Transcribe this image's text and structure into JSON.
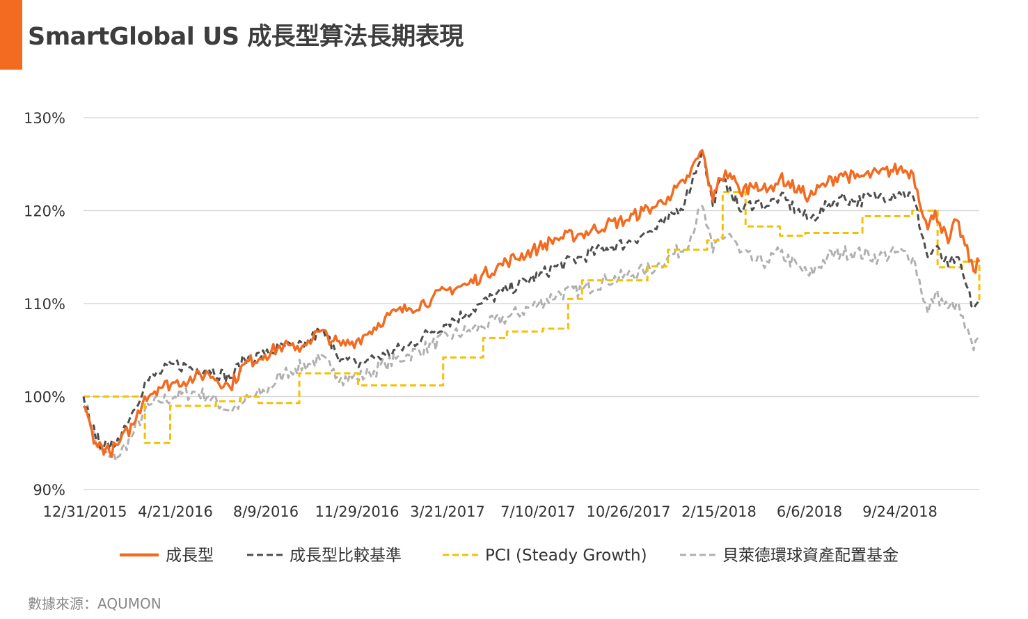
{
  "header": {
    "title": "SmartGlobal US 成長型算法長期表現"
  },
  "footer": {
    "source": "數據來源：AQUMON"
  },
  "colors": {
    "accent": "#f26b21",
    "growth": "#f26b21",
    "benchmark": "#4d4d4d",
    "pci": "#f5c000",
    "blackrock": "#b0b0b0",
    "grid": "#d8d8d8"
  },
  "chart_data": {
    "type": "line",
    "title": "SmartGlobal US 成長型算法長期表現",
    "xlabel": "",
    "ylabel": "",
    "ylim": [
      90,
      130
    ],
    "yticks": [
      90,
      100,
      110,
      120,
      130
    ],
    "ytick_labels": [
      "90%",
      "100%",
      "110%",
      "120%",
      "130%"
    ],
    "xlim": [
      "2015-12-31",
      "2018-12-31"
    ],
    "xtick_labels": [
      "12/31/2015",
      "4/21/2016",
      "8/9/2016",
      "11/29/2016",
      "3/21/2017",
      "7/10/2017",
      "10/26/2017",
      "2/15/2018",
      "6/6/2018",
      "9/24/2018"
    ],
    "grid": true,
    "legend_position": "bottom",
    "series": [
      {
        "name": "成長型",
        "style": "solid",
        "x": [
          "2015-12-31",
          "2016-01-15",
          "2016-02-01",
          "2016-02-11",
          "2016-03-01",
          "2016-03-15",
          "2016-04-01",
          "2016-04-21",
          "2016-05-15",
          "2016-06-01",
          "2016-06-27",
          "2016-07-15",
          "2016-08-09",
          "2016-09-01",
          "2016-09-15",
          "2016-10-01",
          "2016-10-15",
          "2016-11-01",
          "2016-11-10",
          "2016-11-29",
          "2016-12-15",
          "2017-01-03",
          "2017-02-01",
          "2017-03-01",
          "2017-03-21",
          "2017-04-13",
          "2017-05-01",
          "2017-06-01",
          "2017-07-10",
          "2017-08-01",
          "2017-09-01",
          "2017-10-01",
          "2017-10-26",
          "2017-11-15",
          "2017-12-01",
          "2017-12-15",
          "2018-01-05",
          "2018-01-26",
          "2018-02-08",
          "2018-02-15",
          "2018-03-01",
          "2018-03-13",
          "2018-04-02",
          "2018-04-15",
          "2018-05-01",
          "2018-06-06",
          "2018-06-28",
          "2018-07-15",
          "2018-08-01",
          "2018-08-30",
          "2018-09-24",
          "2018-10-11",
          "2018-10-29",
          "2018-11-07",
          "2018-11-23",
          "2018-12-03",
          "2018-12-24",
          "2018-12-31"
        ],
        "values": [
          99.0,
          95.0,
          94.0,
          94.8,
          97.0,
          100.0,
          101.0,
          101.5,
          102.0,
          102.5,
          101.0,
          103.5,
          104.5,
          105.5,
          105.0,
          106.0,
          107.0,
          106.0,
          105.5,
          106.0,
          107.0,
          108.5,
          109.5,
          110.5,
          111.5,
          112.0,
          113.0,
          114.5,
          116.0,
          117.0,
          117.5,
          118.5,
          119.0,
          120.0,
          120.5,
          121.5,
          123.0,
          126.5,
          121.0,
          123.5,
          124.0,
          122.0,
          123.0,
          122.0,
          123.5,
          121.5,
          123.0,
          124.0,
          123.5,
          124.0,
          124.5,
          124.0,
          118.0,
          120.0,
          116.5,
          119.0,
          113.5,
          114.5
        ]
      },
      {
        "name": "成長型比較基準",
        "style": "dashed",
        "x": [
          "2015-12-31",
          "2016-01-15",
          "2016-02-01",
          "2016-02-11",
          "2016-03-01",
          "2016-03-15",
          "2016-04-01",
          "2016-04-21",
          "2016-05-15",
          "2016-06-01",
          "2016-06-27",
          "2016-07-15",
          "2016-08-09",
          "2016-09-01",
          "2016-09-15",
          "2016-10-01",
          "2016-10-15",
          "2016-11-01",
          "2016-11-10",
          "2016-11-29",
          "2016-12-15",
          "2017-01-03",
          "2017-02-01",
          "2017-03-01",
          "2017-03-21",
          "2017-04-13",
          "2017-05-01",
          "2017-06-01",
          "2017-07-10",
          "2017-08-01",
          "2017-09-01",
          "2017-10-01",
          "2017-10-26",
          "2017-11-15",
          "2017-12-01",
          "2017-12-15",
          "2018-01-05",
          "2018-01-26",
          "2018-02-08",
          "2018-02-15",
          "2018-03-01",
          "2018-03-13",
          "2018-04-02",
          "2018-04-15",
          "2018-05-01",
          "2018-06-06",
          "2018-06-28",
          "2018-07-15",
          "2018-08-01",
          "2018-08-30",
          "2018-09-24",
          "2018-10-11",
          "2018-10-29",
          "2018-11-07",
          "2018-11-23",
          "2018-12-03",
          "2018-12-24",
          "2018-12-31"
        ],
        "values": [
          100.0,
          95.5,
          94.3,
          95.5,
          98.5,
          101.5,
          102.5,
          103.5,
          103.0,
          103.0,
          102.0,
          104.0,
          104.5,
          105.5,
          105.0,
          106.0,
          107.0,
          105.5,
          104.0,
          103.5,
          104.0,
          104.5,
          105.5,
          107.0,
          108.0,
          109.0,
          110.0,
          111.5,
          113.0,
          114.0,
          115.0,
          116.0,
          116.5,
          117.5,
          118.0,
          119.0,
          121.0,
          126.5,
          120.5,
          123.0,
          122.5,
          120.0,
          121.0,
          120.5,
          121.5,
          119.0,
          120.5,
          121.5,
          121.0,
          121.5,
          122.0,
          121.5,
          115.0,
          116.0,
          114.0,
          115.0,
          109.5,
          110.5
        ]
      },
      {
        "name": "PCI (Steady Growth)",
        "style": "dashed-step",
        "x": [
          "2015-12-31",
          "2016-02-24",
          "2016-03-15",
          "2016-04-15",
          "2016-06-10",
          "2016-07-10",
          "2016-08-01",
          "2016-09-20",
          "2016-11-10",
          "2016-12-01",
          "2017-01-20",
          "2017-03-01",
          "2017-03-15",
          "2017-05-03",
          "2017-06-01",
          "2017-07-15",
          "2017-08-15",
          "2017-09-01",
          "2017-10-01",
          "2017-11-20",
          "2017-12-15",
          "2018-02-01",
          "2018-02-20",
          "2018-03-20",
          "2018-04-15",
          "2018-05-01",
          "2018-06-01",
          "2018-07-12",
          "2018-08-10",
          "2018-10-10",
          "2018-10-20",
          "2018-11-10",
          "2018-12-10",
          "2018-12-31"
        ],
        "values": [
          100.0,
          100.0,
          95.0,
          99.0,
          99.5,
          100.0,
          99.3,
          102.5,
          102.5,
          101.2,
          101.2,
          101.2,
          104.2,
          106.3,
          107.0,
          107.3,
          110.5,
          112.5,
          112.5,
          114.0,
          115.8,
          116.8,
          122.0,
          118.3,
          118.3,
          117.3,
          117.6,
          117.6,
          119.4,
          120.0,
          120.0,
          113.9,
          114.5,
          110.0
        ]
      },
      {
        "name": "貝萊德環球資產配置基金",
        "style": "dashed",
        "x": [
          "2015-12-31",
          "2016-01-15",
          "2016-02-01",
          "2016-02-11",
          "2016-03-01",
          "2016-03-15",
          "2016-04-01",
          "2016-04-21",
          "2016-05-15",
          "2016-06-01",
          "2016-06-27",
          "2016-07-15",
          "2016-08-09",
          "2016-09-01",
          "2016-09-15",
          "2016-10-01",
          "2016-10-15",
          "2016-11-01",
          "2016-11-10",
          "2016-11-29",
          "2016-12-15",
          "2017-01-03",
          "2017-02-01",
          "2017-03-01",
          "2017-03-21",
          "2017-04-13",
          "2017-05-01",
          "2017-06-01",
          "2017-07-10",
          "2017-08-01",
          "2017-09-01",
          "2017-10-01",
          "2017-10-26",
          "2017-11-15",
          "2017-12-01",
          "2017-12-15",
          "2018-01-05",
          "2018-01-26",
          "2018-02-08",
          "2018-02-15",
          "2018-03-01",
          "2018-03-13",
          "2018-04-02",
          "2018-04-15",
          "2018-05-01",
          "2018-06-06",
          "2018-06-28",
          "2018-07-15",
          "2018-08-01",
          "2018-08-30",
          "2018-09-24",
          "2018-10-11",
          "2018-10-29",
          "2018-11-07",
          "2018-11-23",
          "2018-12-03",
          "2018-12-24",
          "2018-12-31"
        ],
        "values": [
          100.0,
          95.0,
          93.5,
          93.5,
          96.0,
          98.5,
          99.5,
          100.0,
          100.5,
          100.0,
          98.5,
          99.5,
          100.5,
          102.5,
          103.0,
          103.5,
          104.0,
          103.0,
          102.0,
          102.0,
          102.5,
          103.5,
          104.5,
          105.5,
          106.5,
          107.0,
          107.5,
          108.5,
          110.0,
          111.0,
          111.5,
          112.5,
          113.0,
          113.5,
          114.0,
          115.0,
          116.0,
          120.5,
          115.5,
          117.0,
          117.5,
          115.5,
          114.5,
          114.5,
          115.5,
          113.0,
          115.0,
          115.5,
          115.5,
          115.0,
          115.5,
          115.0,
          109.0,
          111.0,
          109.5,
          110.0,
          105.0,
          106.0
        ]
      }
    ]
  }
}
